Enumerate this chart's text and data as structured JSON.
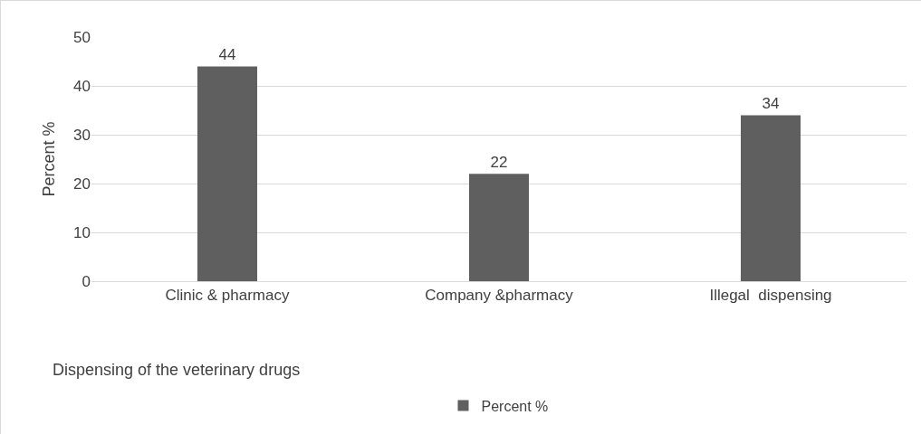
{
  "chart_data": {
    "type": "bar",
    "xlabel": "Dispensing of the veterinary drugs",
    "ylabel": "Percent %",
    "categories": [
      "Clinic & pharmacy",
      "Company &pharmacy",
      "Illegal  dispensing"
    ],
    "series": [
      {
        "name": "Percent %",
        "color": "#5f5f5f",
        "values": [
          44,
          22,
          34
        ]
      }
    ],
    "ylim": [
      0,
      50
    ],
    "yticks": [
      0,
      10,
      20,
      30,
      40,
      50
    ],
    "grid": "y",
    "legend": "bottom",
    "data_labels": true
  }
}
